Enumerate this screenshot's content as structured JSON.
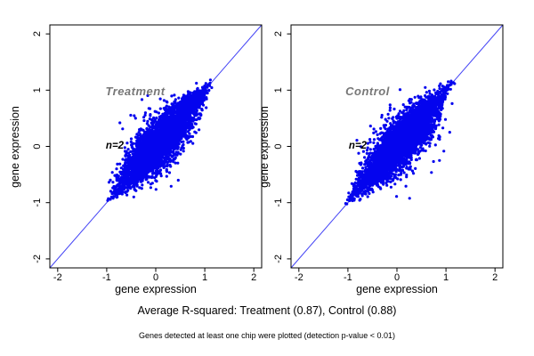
{
  "figure": {
    "background": "#ffffff",
    "captions": {
      "r_squared": "Average R-squared: Treatment (0.87), Control (0.88)",
      "note": "Genes detected at least one chip were plotted (detection p-value < 0.01)"
    }
  },
  "chart_data": [
    {
      "type": "scatter",
      "title": "Treatment",
      "annotation": "n=2",
      "xlabel": "gene expression",
      "ylabel": "gene expression",
      "xlim": [
        -2.16,
        2.16
      ],
      "ylim": [
        -2.16,
        2.16
      ],
      "xticks": [
        -2,
        -1,
        0,
        1,
        2
      ],
      "yticks": [
        -2,
        -1,
        0,
        1,
        2
      ],
      "grid": false,
      "r_squared": 0.87,
      "point_color": "#0404ee",
      "line_color": "#4444f5",
      "identity_line": true,
      "cloud": {
        "description": "dense leaf-shaped cloud of gene expression values along identity line",
        "n": 4200,
        "seed": 13,
        "t_min": -1.07,
        "t_max": 1.23,
        "sigma_max": 0.16,
        "floor": -1.07,
        "outliers": 26,
        "outlier_spread": 0.42
      }
    },
    {
      "type": "scatter",
      "title": "Control",
      "annotation": "n=2",
      "xlabel": "gene expression",
      "ylabel": "gene expression",
      "xlim": [
        -2.16,
        2.16
      ],
      "ylim": [
        -2.16,
        2.16
      ],
      "xticks": [
        -2,
        -1,
        0,
        1,
        2
      ],
      "yticks": [
        -2,
        -1,
        0,
        1,
        2
      ],
      "grid": false,
      "r_squared": 0.88,
      "point_color": "#0404ee",
      "line_color": "#4444f5",
      "identity_line": true,
      "cloud": {
        "description": "dense leaf-shaped cloud of gene expression values along identity line",
        "n": 4200,
        "seed": 47,
        "t_min": -1.07,
        "t_max": 1.23,
        "sigma_max": 0.16,
        "floor": -1.07,
        "outliers": 26,
        "outlier_spread": 0.42
      }
    }
  ]
}
